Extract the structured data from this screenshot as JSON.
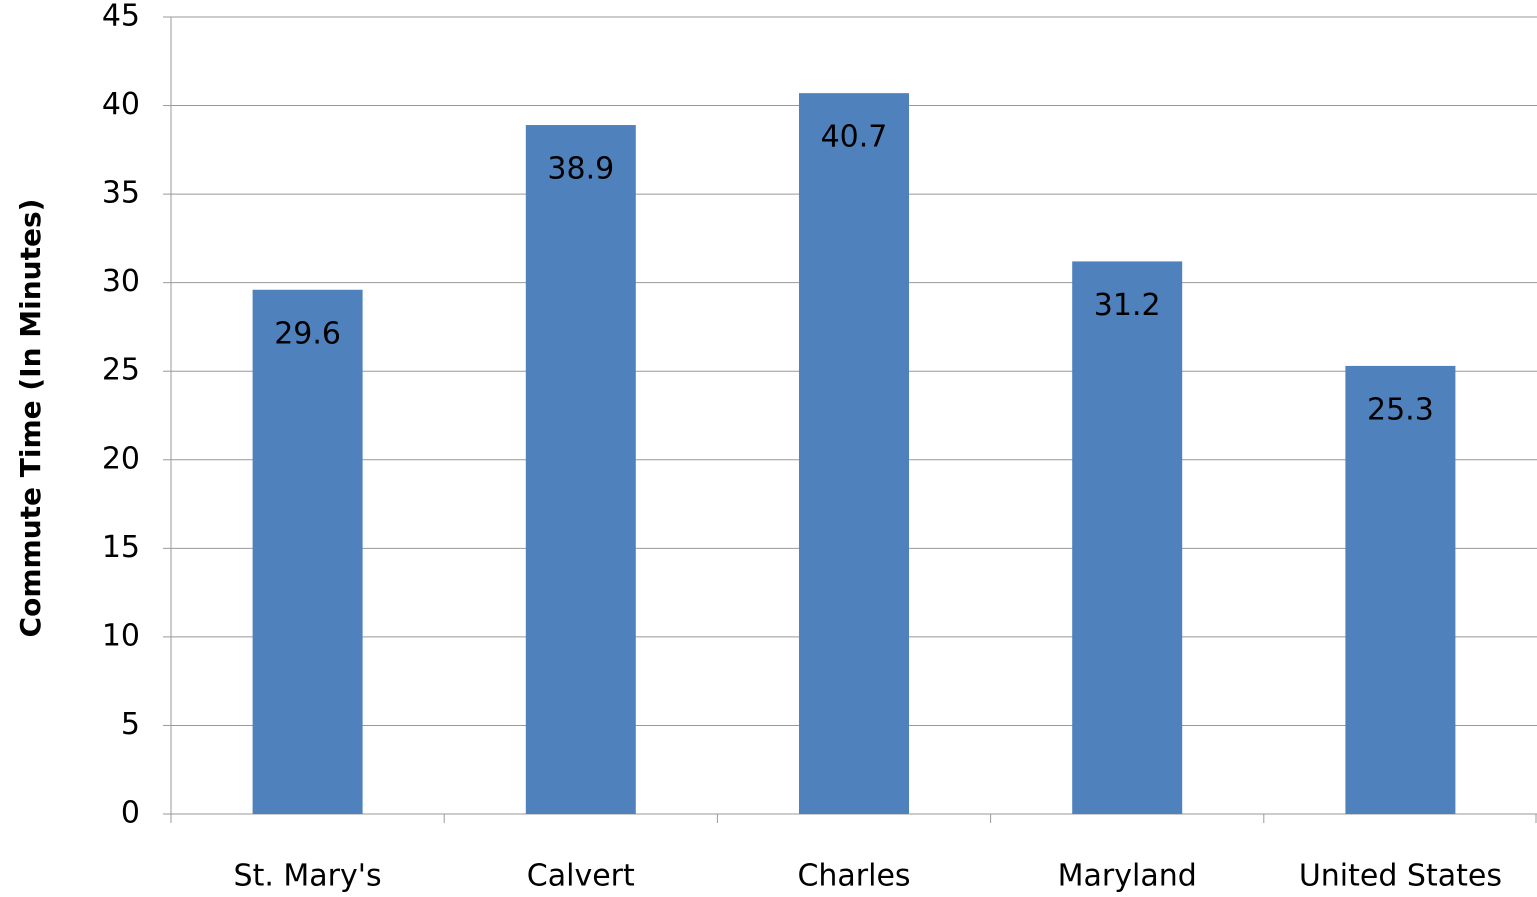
{
  "chart_data": {
    "type": "bar",
    "y_axis_label": "Commute Time (In Minutes)",
    "categories": [
      "St. Mary's",
      "Calvert",
      "Charles",
      "Maryland",
      "United States"
    ],
    "values": [
      29.6,
      38.9,
      40.7,
      31.2,
      25.3
    ],
    "color": "#4f81bd",
    "ylim": [
      0,
      45
    ],
    "yticks": [
      0,
      5,
      10,
      15,
      20,
      25,
      30,
      35,
      40,
      45
    ],
    "grid": true
  }
}
